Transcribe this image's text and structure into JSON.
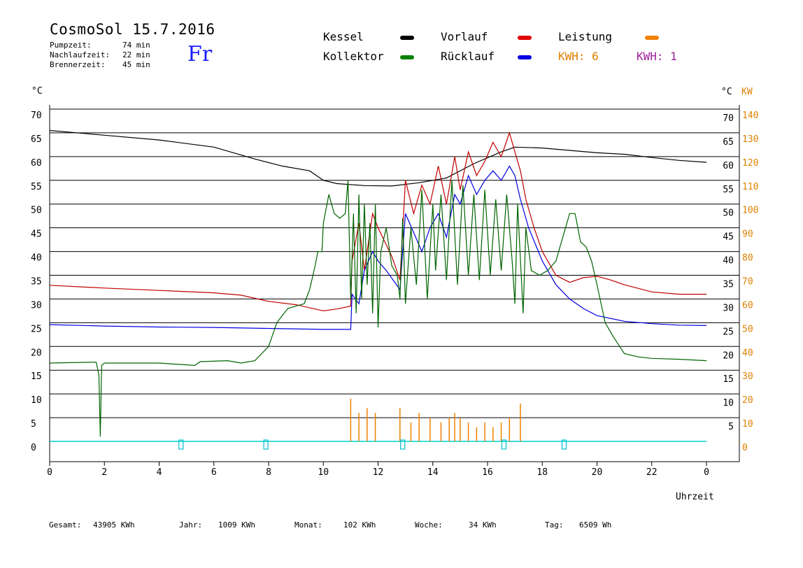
{
  "header": {
    "title": "CosmoSol 15.7.2016",
    "day": "Fr",
    "stats": [
      {
        "label": "Pumpzeit:",
        "value": "74 min"
      },
      {
        "label": "Nachlaufzeit:",
        "value": "22 min"
      },
      {
        "label": "Brennerzeit:",
        "value": "45 min"
      }
    ]
  },
  "legend": {
    "items": [
      {
        "label": "Kessel",
        "color": "#000000"
      },
      {
        "label": "Vorlauf",
        "color": "#e00000"
      },
      {
        "label": "Leistung",
        "color": "#f08000"
      },
      {
        "label": "Kollektor",
        "color": "#008000"
      },
      {
        "label": "Rücklauf",
        "color": "#0000e0"
      }
    ],
    "kwh_orange": "KWH: 6",
    "kwh_purple": "KWH: 1",
    "kwh_orange_color": "#e08000",
    "kwh_purple_color": "#a020a0"
  },
  "footer": {
    "gesamt_label": "Gesamt:",
    "gesamt_value": "43905 KWh",
    "jahr_label": "Jahr:",
    "jahr_value": "1009 KWh",
    "monat_label": "Monat:",
    "monat_value": "102 KWh",
    "woche_label": "Woche:",
    "woche_value": "34 KWh",
    "tag_label": "Tag:",
    "tag_value": "6509 Wh"
  },
  "chart_data": {
    "type": "line",
    "title": "CosmoSol 15.7.2016",
    "xlabel": "Uhrzeit",
    "ylabel_left": "°C",
    "ylabel_right_temp": "°C",
    "ylabel_right_power": "KW",
    "xlim": [
      0,
      24
    ],
    "ylim": [
      0,
      70
    ],
    "y2lim": [
      0,
      140
    ],
    "grid": true,
    "x_tick_labels": [
      "0",
      "2",
      "4",
      "6",
      "8",
      "10",
      "12",
      "14",
      "16",
      "18",
      "20",
      "22",
      "0"
    ],
    "y_tick_labels": [
      "0",
      "5",
      "10",
      "15",
      "20",
      "25",
      "30",
      "35",
      "40",
      "45",
      "50",
      "55",
      "60",
      "65",
      "70"
    ],
    "y_right_tick_labels": [
      "5",
      "10",
      "15",
      "20",
      "25",
      "30",
      "35",
      "40",
      "45",
      "50",
      "55",
      "60",
      "65",
      "70"
    ],
    "y2_tick_labels": [
      "0",
      "10",
      "20",
      "30",
      "40",
      "50",
      "60",
      "70",
      "80",
      "90",
      "100",
      "110",
      "120",
      "130",
      "140"
    ],
    "series": [
      {
        "name": "Kessel",
        "color": "#000000",
        "points": [
          [
            0,
            65.5
          ],
          [
            2,
            64.5
          ],
          [
            4,
            63.5
          ],
          [
            6,
            62
          ],
          [
            7.5,
            59.5
          ],
          [
            8.5,
            58
          ],
          [
            9.5,
            57
          ],
          [
            10,
            55
          ],
          [
            10.5,
            54.3
          ],
          [
            11.5,
            53.9
          ],
          [
            12.5,
            53.8
          ],
          [
            13.5,
            54.5
          ],
          [
            14,
            55
          ],
          [
            14.5,
            55.5
          ],
          [
            15.5,
            58.5
          ],
          [
            16.5,
            61
          ],
          [
            17,
            62
          ],
          [
            18,
            61.8
          ],
          [
            19,
            61.3
          ],
          [
            20,
            60.8
          ],
          [
            21,
            60.5
          ],
          [
            22,
            59.8
          ],
          [
            23,
            59.2
          ],
          [
            24,
            58.8
          ]
        ]
      },
      {
        "name": "Vorlauf",
        "color": "#c00000",
        "points": [
          [
            0,
            32.9
          ],
          [
            2,
            32.3
          ],
          [
            4,
            31.8
          ],
          [
            6,
            31.3
          ],
          [
            7,
            30.8
          ],
          [
            8,
            29.5
          ],
          [
            9,
            28.8
          ],
          [
            10,
            27.5
          ],
          [
            10.5,
            27.9
          ],
          [
            11,
            28.5
          ],
          [
            11.05,
            38
          ],
          [
            11.3,
            46
          ],
          [
            11.5,
            36
          ],
          [
            11.8,
            48
          ],
          [
            12,
            45
          ],
          [
            12.5,
            39
          ],
          [
            12.8,
            34
          ],
          [
            13,
            55
          ],
          [
            13.3,
            48
          ],
          [
            13.6,
            54
          ],
          [
            13.9,
            50
          ],
          [
            14.2,
            58
          ],
          [
            14.5,
            50
          ],
          [
            14.8,
            60
          ],
          [
            15,
            53
          ],
          [
            15.3,
            61
          ],
          [
            15.6,
            56
          ],
          [
            15.9,
            59
          ],
          [
            16.2,
            63
          ],
          [
            16.5,
            60
          ],
          [
            16.8,
            65
          ],
          [
            17,
            61
          ],
          [
            17.2,
            57
          ],
          [
            17.4,
            51
          ],
          [
            17.7,
            45
          ],
          [
            18,
            40
          ],
          [
            18.5,
            35
          ],
          [
            19,
            33.5
          ],
          [
            19.5,
            34.5
          ],
          [
            20,
            34.8
          ],
          [
            20.5,
            34
          ],
          [
            21,
            33
          ],
          [
            22,
            31.5
          ],
          [
            23,
            31
          ],
          [
            24,
            31
          ]
        ]
      },
      {
        "name": "Rücklauf",
        "color": "#0000e0",
        "points": [
          [
            0,
            24.6
          ],
          [
            2,
            24.3
          ],
          [
            4,
            24.1
          ],
          [
            6,
            24
          ],
          [
            8,
            23.8
          ],
          [
            10,
            23.6
          ],
          [
            11,
            23.6
          ],
          [
            11.05,
            31
          ],
          [
            11.3,
            29
          ],
          [
            11.5,
            36
          ],
          [
            11.8,
            40
          ],
          [
            12,
            38
          ],
          [
            12.3,
            36
          ],
          [
            12.8,
            32
          ],
          [
            13,
            48
          ],
          [
            13.3,
            44
          ],
          [
            13.6,
            40
          ],
          [
            13.9,
            45
          ],
          [
            14.2,
            48
          ],
          [
            14.5,
            43
          ],
          [
            14.8,
            52
          ],
          [
            15,
            50
          ],
          [
            15.3,
            56
          ],
          [
            15.6,
            52
          ],
          [
            15.9,
            55
          ],
          [
            16.2,
            57
          ],
          [
            16.5,
            55
          ],
          [
            16.8,
            58
          ],
          [
            17,
            56
          ],
          [
            17.2,
            51
          ],
          [
            17.5,
            45
          ],
          [
            18,
            38
          ],
          [
            18.5,
            33
          ],
          [
            19,
            30
          ],
          [
            19.5,
            28
          ],
          [
            20,
            26.5
          ],
          [
            21,
            25.3
          ],
          [
            22,
            24.8
          ],
          [
            23,
            24.5
          ],
          [
            24,
            24.4
          ]
        ]
      },
      {
        "name": "Kollektor",
        "color": "#006400",
        "points": [
          [
            0,
            16.5
          ],
          [
            1.7,
            16.7
          ],
          [
            1.8,
            14
          ],
          [
            1.85,
            1
          ],
          [
            1.9,
            16
          ],
          [
            2,
            16.5
          ],
          [
            4,
            16.5
          ],
          [
            5.3,
            16
          ],
          [
            5.5,
            16.8
          ],
          [
            6.5,
            17
          ],
          [
            7,
            16.5
          ],
          [
            7.5,
            17
          ],
          [
            8,
            20
          ],
          [
            8.3,
            25
          ],
          [
            8.7,
            28
          ],
          [
            9,
            28.5
          ],
          [
            9.3,
            29
          ],
          [
            9.5,
            32
          ],
          [
            9.7,
            37
          ],
          [
            9.8,
            40
          ],
          [
            9.95,
            40
          ],
          [
            10,
            46
          ],
          [
            10.2,
            52
          ],
          [
            10.4,
            48
          ],
          [
            10.6,
            47
          ],
          [
            10.8,
            48
          ],
          [
            10.9,
            55
          ],
          [
            11,
            30
          ],
          [
            11.1,
            48
          ],
          [
            11.2,
            27
          ],
          [
            11.3,
            52
          ],
          [
            11.4,
            30
          ],
          [
            11.5,
            50
          ],
          [
            11.6,
            33
          ],
          [
            11.7,
            46
          ],
          [
            11.8,
            27
          ],
          [
            11.9,
            50
          ],
          [
            12,
            24
          ],
          [
            12.1,
            40
          ],
          [
            12.3,
            45
          ],
          [
            12.5,
            37
          ],
          [
            12.7,
            35
          ],
          [
            12.8,
            30
          ],
          [
            12.9,
            47
          ],
          [
            13,
            29
          ],
          [
            13.2,
            45
          ],
          [
            13.4,
            33
          ],
          [
            13.6,
            53
          ],
          [
            13.8,
            30
          ],
          [
            14,
            50
          ],
          [
            14.1,
            36
          ],
          [
            14.3,
            52
          ],
          [
            14.5,
            34
          ],
          [
            14.7,
            55
          ],
          [
            14.9,
            33
          ],
          [
            15.1,
            54
          ],
          [
            15.3,
            35
          ],
          [
            15.5,
            52
          ],
          [
            15.7,
            34
          ],
          [
            15.9,
            53
          ],
          [
            16.1,
            35
          ],
          [
            16.3,
            51
          ],
          [
            16.5,
            36
          ],
          [
            16.7,
            52
          ],
          [
            16.9,
            38
          ],
          [
            17,
            29
          ],
          [
            17.1,
            50
          ],
          [
            17.3,
            27
          ],
          [
            17.4,
            45
          ],
          [
            17.6,
            36
          ],
          [
            17.9,
            35
          ],
          [
            18.2,
            36
          ],
          [
            18.5,
            38
          ],
          [
            18.8,
            44
          ],
          [
            19,
            48
          ],
          [
            19.2,
            48
          ],
          [
            19.4,
            42
          ],
          [
            19.6,
            41
          ],
          [
            19.8,
            38
          ],
          [
            20,
            33
          ],
          [
            20.3,
            25
          ],
          [
            20.6,
            22
          ],
          [
            21,
            18.5
          ],
          [
            21.5,
            17.8
          ],
          [
            22,
            17.5
          ],
          [
            23,
            17.3
          ],
          [
            24,
            17
          ]
        ]
      },
      {
        "name": "Leistung",
        "color": "#f08000",
        "spikes": [
          [
            11,
            9
          ],
          [
            11.3,
            6
          ],
          [
            11.6,
            7
          ],
          [
            11.9,
            6
          ],
          [
            12.8,
            7
          ],
          [
            13.2,
            4
          ],
          [
            13.5,
            6
          ],
          [
            13.9,
            5
          ],
          [
            14.3,
            4
          ],
          [
            14.6,
            5
          ],
          [
            14.8,
            6
          ],
          [
            15,
            5
          ],
          [
            15.3,
            4
          ],
          [
            15.6,
            3
          ],
          [
            15.9,
            4
          ],
          [
            16.2,
            3
          ],
          [
            16.5,
            4
          ],
          [
            16.8,
            5
          ],
          [
            17.2,
            8
          ]
        ]
      }
    ],
    "burner_markers": [
      4.8,
      7.9,
      12.9,
      16.6,
      18.8
    ]
  }
}
